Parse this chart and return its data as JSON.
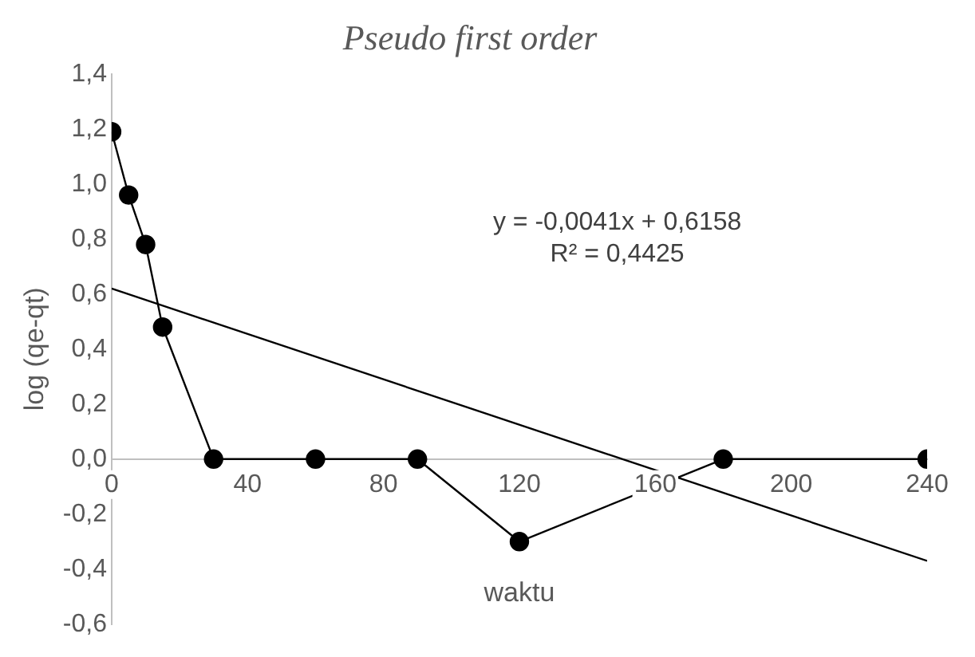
{
  "chart_data": {
    "type": "line",
    "title": "Pseudo first order",
    "xlabel": "waktu",
    "ylabel": "log (qe-qt)",
    "series": [
      {
        "color": "#000000",
        "marker": "circle",
        "x": [
          0,
          5,
          10,
          15,
          30,
          60,
          90,
          120,
          180,
          240
        ],
        "values": [
          1.19,
          0.96,
          0.78,
          0.48,
          0,
          0,
          0,
          -0.3,
          0,
          0
        ]
      },
      {
        "color": "#000000",
        "marker": "none",
        "x": [
          0,
          240
        ],
        "values": [
          0.62,
          -0.37
        ]
      }
    ],
    "xlim": [
      0,
      240
    ],
    "xticks": [
      0,
      40,
      80,
      120,
      160,
      200,
      240
    ],
    "ylim": [
      -0.6,
      1.4
    ],
    "yticks": [
      {
        "value": -0.6,
        "label": "-0,6"
      },
      {
        "value": -0.4,
        "label": "-0,4"
      },
      {
        "value": -0.2,
        "label": "-0,2"
      },
      {
        "value": 0,
        "label": "0,0"
      },
      {
        "value": 0.2,
        "label": "0,2"
      },
      {
        "value": 0.4,
        "label": "0,4"
      },
      {
        "value": 0.6,
        "label": "0,6"
      },
      {
        "value": 0.8,
        "label": "0,8"
      },
      {
        "value": 1,
        "label": "1,0"
      },
      {
        "value": 1.2,
        "label": "1,2"
      },
      {
        "value": 1.4,
        "label": "1,4"
      }
    ],
    "annotations": [
      "y = -0,0041x + 0,6158",
      "R² = 0,4425"
    ],
    "grid": false,
    "legend": false
  }
}
